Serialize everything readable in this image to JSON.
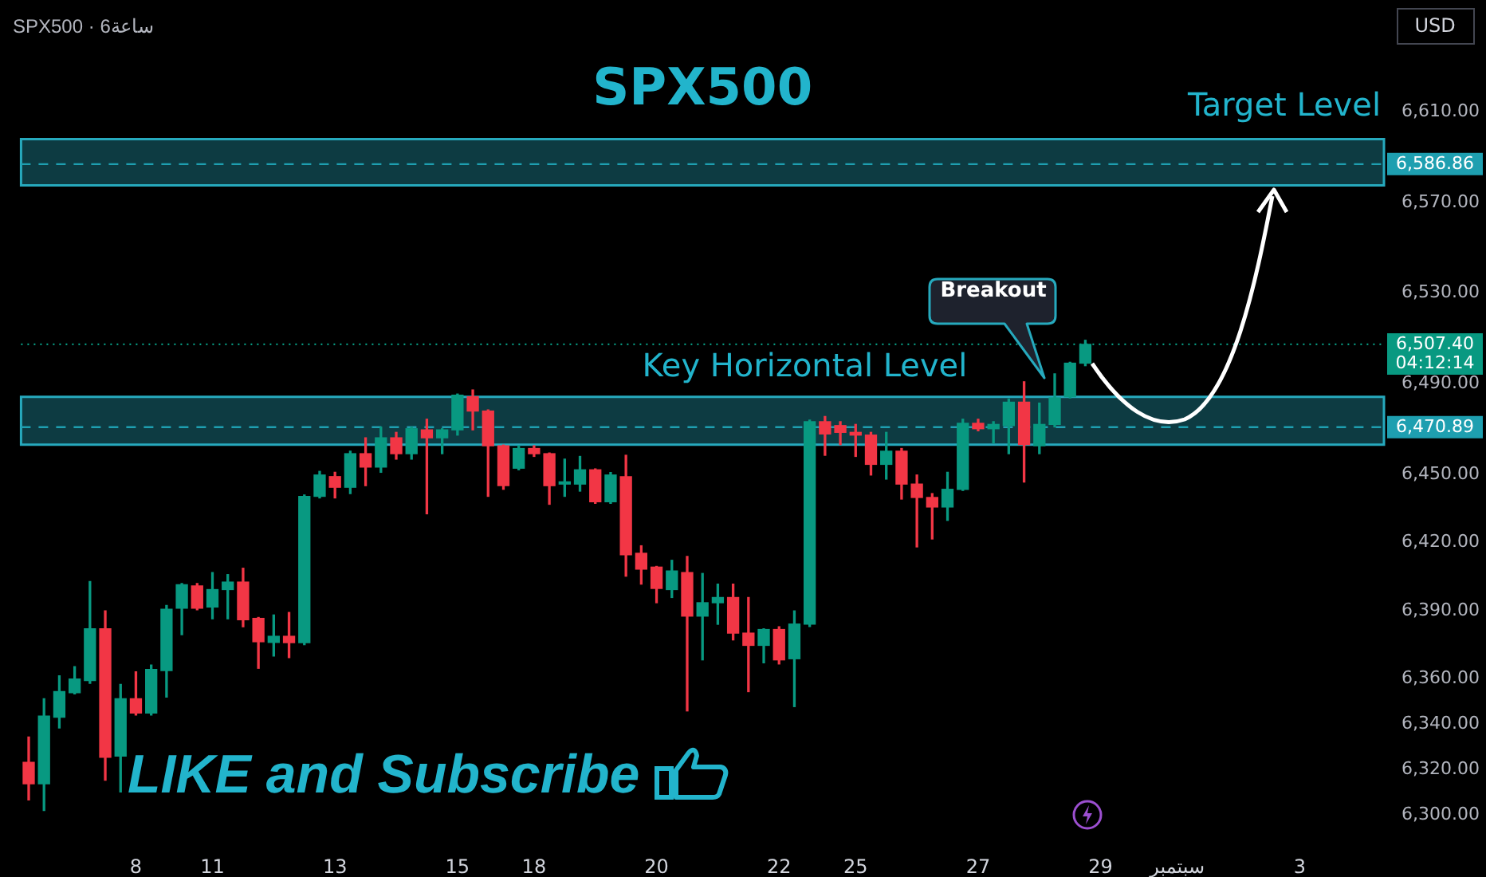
{
  "chart_data": {
    "type": "candlestick",
    "title": "SPX500",
    "subtitle": "SPX500 · 6ساعة",
    "categories": [
      null,
      null,
      null,
      null,
      null,
      null,
      null,
      "8",
      null,
      null,
      null,
      null,
      "11",
      null,
      null,
      null,
      null,
      null,
      null,
      null,
      "13",
      null,
      null,
      null,
      null,
      null,
      null,
      null,
      "15",
      null,
      null,
      null,
      null,
      "18",
      null,
      null,
      null,
      null,
      null,
      null,
      null,
      "20",
      null,
      null,
      null,
      null,
      null,
      null,
      null,
      "22",
      null,
      null,
      null,
      null,
      "25",
      null,
      null,
      null,
      null,
      null,
      null,
      null,
      "27",
      null,
      null,
      null,
      null,
      null,
      null,
      null,
      "29",
      null,
      null,
      null,
      null,
      "سبتمبر",
      null,
      null,
      null,
      null,
      null,
      null,
      null,
      "3",
      null,
      null,
      null,
      null,
      null
    ],
    "ohlc": [
      [
        6323.1,
        6334.3,
        6306.6,
        6313.7
      ],
      [
        6313.7,
        6351.2,
        6301.9,
        6343.5
      ],
      [
        6343,
        6361.3,
        6338.3,
        6354.3
      ],
      [
        6353.8,
        6365.3,
        6353.3,
        6359.9
      ],
      [
        6359.2,
        6402.8,
        6358,
        6382
      ],
      [
        6382,
        6389.9,
        6315.3,
        6325.4
      ],
      [
        6325.9,
        6357.5,
        6310.1,
        6351.2
      ],
      [
        6351.2,
        6363,
        6344,
        6344.9
      ],
      [
        6344.9,
        6366,
        6344,
        6364.1
      ],
      [
        6363.6,
        6392.3,
        6351.9,
        6390.6
      ],
      [
        6391.1,
        6402,
        6379.4,
        6401.4
      ],
      [
        6400.9,
        6402,
        6390.4,
        6391.1
      ],
      [
        6391.6,
        6406.8,
        6386.4,
        6399.3
      ],
      [
        6399.3,
        6405.9,
        6386.4,
        6402.6
      ],
      [
        6402.6,
        6408.7,
        6382.9,
        6386
      ],
      [
        6386.6,
        6387,
        6364.6,
        6376.3
      ],
      [
        6376,
        6388.1,
        6370,
        6378.7
      ],
      [
        6378.7,
        6389.2,
        6369.3,
        6375.9
      ],
      [
        6375.9,
        6441,
        6375,
        6440.4
      ],
      [
        6440.4,
        6451.4,
        6439.7,
        6449.8
      ],
      [
        6449.1,
        6451,
        6439.7,
        6444.4
      ],
      [
        6444.4,
        6460.3,
        6441.6,
        6459.2
      ],
      [
        6459.2,
        6466.2,
        6445.1,
        6453.3
      ],
      [
        6453.3,
        6470.9,
        6451,
        6466.2
      ],
      [
        6466.2,
        6468.6,
        6456.8,
        6459.2
      ],
      [
        6459.2,
        6470.9,
        6456.8,
        6470.2
      ],
      [
        6469.7,
        6474.4,
        6432.7,
        6466.2
      ],
      [
        6466.2,
        6470.2,
        6459.2,
        6469.7
      ],
      [
        6469.7,
        6485.5,
        6467.4,
        6485
      ],
      [
        6484.3,
        6487.3,
        6469.7,
        6478
      ],
      [
        6478,
        6478.5,
        6440.4,
        6462.7
      ],
      [
        6462.7,
        6463,
        6443.5,
        6445.1
      ],
      [
        6452.8,
        6462.7,
        6452.1,
        6461.5
      ],
      [
        6461.5,
        6462.7,
        6458,
        6459.2
      ],
      [
        6459.2,
        6459.5,
        6436.9,
        6445.1
      ],
      [
        6445.8,
        6456.8,
        6440.4,
        6446.8
      ],
      [
        6445.8,
        6458,
        6442.7,
        6452.1
      ],
      [
        6452.1,
        6452.5,
        6437.3,
        6438
      ],
      [
        6438,
        6450.9,
        6437.3,
        6449.8
      ],
      [
        6449.1,
        6458.5,
        6405.2,
        6414.6
      ],
      [
        6415.3,
        6418.6,
        6401.7,
        6408.3
      ],
      [
        6409.2,
        6409.5,
        6393.5,
        6399.8
      ],
      [
        6399.3,
        6412.2,
        6395.8,
        6407.5
      ],
      [
        6406.8,
        6413.9,
        6345.8,
        6387.6
      ],
      [
        6387.6,
        6406.4,
        6368.3,
        6393.5
      ],
      [
        6393.5,
        6401.7,
        6384,
        6395.8
      ],
      [
        6395.8,
        6401.7,
        6377.1,
        6380.1
      ],
      [
        6380.1,
        6395.8,
        6354.3,
        6374.7
      ],
      [
        6374.7,
        6382,
        6367,
        6381.7
      ],
      [
        6381.7,
        6382.9,
        6366.5,
        6368.3
      ],
      [
        6368.8,
        6389.9,
        6347.7,
        6384.1
      ],
      [
        6384.1,
        6474,
        6383,
        6473.3
      ],
      [
        6473.3,
        6475.6,
        6458.5,
        6467.9
      ],
      [
        6471.6,
        6473.3,
        6463.2,
        6468.6
      ],
      [
        6468.6,
        6472.1,
        6458,
        6467.4
      ],
      [
        6467.4,
        6468.6,
        6449.8,
        6454.5
      ],
      [
        6454.5,
        6468.6,
        6448,
        6460.3
      ],
      [
        6460.3,
        6461.5,
        6439.2,
        6445.8
      ],
      [
        6445.8,
        6449.8,
        6418.1,
        6439.9
      ],
      [
        6439.9,
        6441.6,
        6421.6,
        6435.7
      ],
      [
        6435.7,
        6451,
        6429.8,
        6443.5
      ],
      [
        6443.5,
        6474.4,
        6443,
        6472.6
      ],
      [
        6472.6,
        6474.4,
        6469.3,
        6470.2
      ],
      [
        6470.2,
        6473.3,
        6463.9,
        6472.1
      ],
      [
        6471.6,
        6483.3,
        6459.2,
        6481.9
      ],
      [
        6481.9,
        6490.9,
        6446.7,
        6463.2
      ],
      [
        6462.7,
        6481.5,
        6459.2,
        6472.1
      ],
      [
        6472.1,
        6494.4,
        6471,
        6483.8
      ],
      [
        6484.3,
        6499.5,
        6483.8,
        6499.1
      ],
      [
        6499.1,
        6509.2,
        6498,
        6507.4
      ],
      null,
      null,
      null,
      null,
      null,
      null,
      null,
      null,
      null,
      null,
      null,
      null,
      null,
      null,
      null,
      null,
      null,
      null,
      null
    ],
    "ylim": [
      6300,
      6610
    ],
    "yticks": [
      {
        "value": 6300,
        "label": "6,300.00"
      },
      {
        "value": 6320,
        "label": "6,320.00"
      },
      {
        "value": 6340,
        "label": "6,340.00"
      },
      {
        "value": 6360,
        "label": "6,360.00"
      },
      {
        "value": 6390,
        "label": "6,390.00"
      },
      {
        "value": 6420,
        "label": "6,420.00"
      },
      {
        "value": 6450,
        "label": "6,450.00"
      },
      {
        "value": 6490,
        "label": "6,490.00"
      },
      {
        "value": 6530,
        "label": "6,530.00"
      },
      {
        "value": 6570,
        "label": "6,570.00"
      },
      {
        "value": 6610,
        "label": "6,610.00"
      }
    ],
    "bands": [
      {
        "axis": "y",
        "from": 6463.2,
        "to": 6484.3,
        "label": "Key Horizontal Level",
        "color": "#26a9bd"
      },
      {
        "axis": "y",
        "from": 6577.5,
        "to": 6597.9,
        "label": "Target Level",
        "color": "#26a9bd"
      }
    ],
    "ref_lines": [
      {
        "axis": "y",
        "value": 6586.86,
        "label": "6,586.86",
        "color": "#1e9fb0",
        "line_style": "dashed"
      },
      {
        "axis": "y",
        "value": 6470.89,
        "label": "6,470.89",
        "color": "#1e9fb0",
        "line_style": "dashed"
      },
      {
        "axis": "y",
        "value": 6507.4,
        "label": "6,507.40\n04:12:14",
        "color": "#089981",
        "line_style": "dotted"
      }
    ],
    "annotations": [
      "Breakout",
      "LIKE and Subscribe",
      "USD"
    ]
  }
}
